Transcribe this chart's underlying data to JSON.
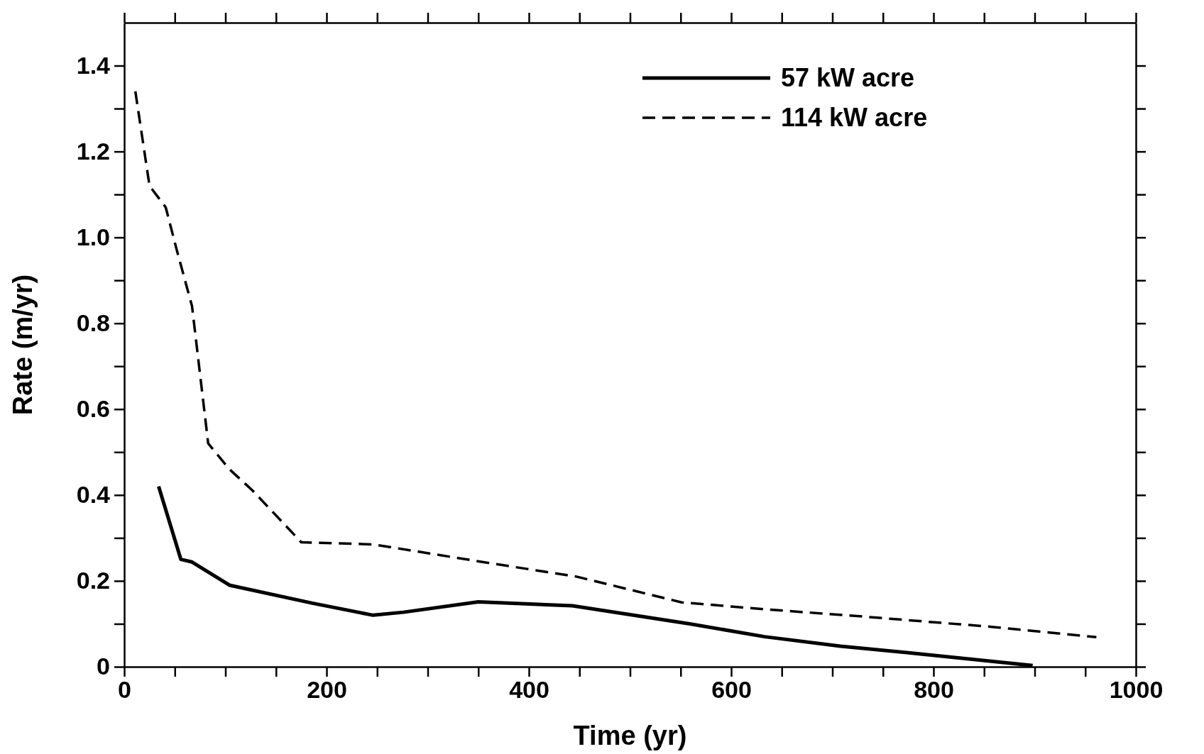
{
  "chart_data": {
    "type": "line",
    "xlabel": "Time (yr)",
    "ylabel": "Rate (m/yr)",
    "xlim": [
      0,
      1000
    ],
    "ylim": [
      0,
      1.5
    ],
    "xticks": [
      0,
      {
        "value": 50,
        "label": null
      },
      {
        "value": 100,
        "label": null
      },
      {
        "value": 150,
        "label": null
      },
      200,
      {
        "value": 250,
        "label": null
      },
      {
        "value": 300,
        "label": null
      },
      {
        "value": 350,
        "label": null
      },
      400,
      {
        "value": 450,
        "label": null
      },
      {
        "value": 500,
        "label": null
      },
      {
        "value": 550,
        "label": null
      },
      600,
      {
        "value": 650,
        "label": null
      },
      {
        "value": 700,
        "label": null
      },
      {
        "value": 750,
        "label": null
      },
      800,
      {
        "value": 850,
        "label": null
      },
      {
        "value": 900,
        "label": null
      },
      {
        "value": 950,
        "label": null
      },
      1000
    ],
    "yticks": [
      {
        "value": 0,
        "label": "0"
      },
      {
        "value": 0.1,
        "label": null
      },
      0.2,
      {
        "value": 0.3,
        "label": null
      },
      0.4,
      {
        "value": 0.5,
        "label": null
      },
      0.6,
      {
        "value": 0.7,
        "label": null
      },
      0.8,
      {
        "value": 0.9,
        "label": null
      },
      {
        "value": 1,
        "label": "1.0"
      },
      {
        "value": 1.1,
        "label": null
      },
      1.2,
      {
        "value": 1.3,
        "label": null
      },
      1.4
    ],
    "legend": "top right",
    "grid": false,
    "marker": "none",
    "series": [
      {
        "name": "57 kW acre",
        "color": "#000000",
        "line_style": "solid",
        "x": [
          34,
          56,
          67,
          104,
          186,
          246,
          276,
          350,
          443,
          559,
          633,
          708,
          782,
          898
        ],
        "values": [
          0.42,
          0.25,
          0.244,
          0.19,
          0.148,
          0.12,
          0.127,
          0.151,
          0.142,
          0.1,
          0.07,
          0.048,
          0.031,
          0.003
        ]
      },
      {
        "name": "114 kW acre",
        "color": "#000000",
        "line_style": "dashed",
        "x": [
          11,
          25,
          41,
          52,
          67,
          83,
          104,
          127,
          175,
          246,
          365,
          447,
          551,
          633,
          730,
          857,
          961
        ],
        "values": [
          1.34,
          1.12,
          1.07,
          0.97,
          0.84,
          0.52,
          0.46,
          0.41,
          0.29,
          0.285,
          0.24,
          0.21,
          0.15,
          0.134,
          0.117,
          0.093,
          0.069
        ]
      }
    ]
  }
}
